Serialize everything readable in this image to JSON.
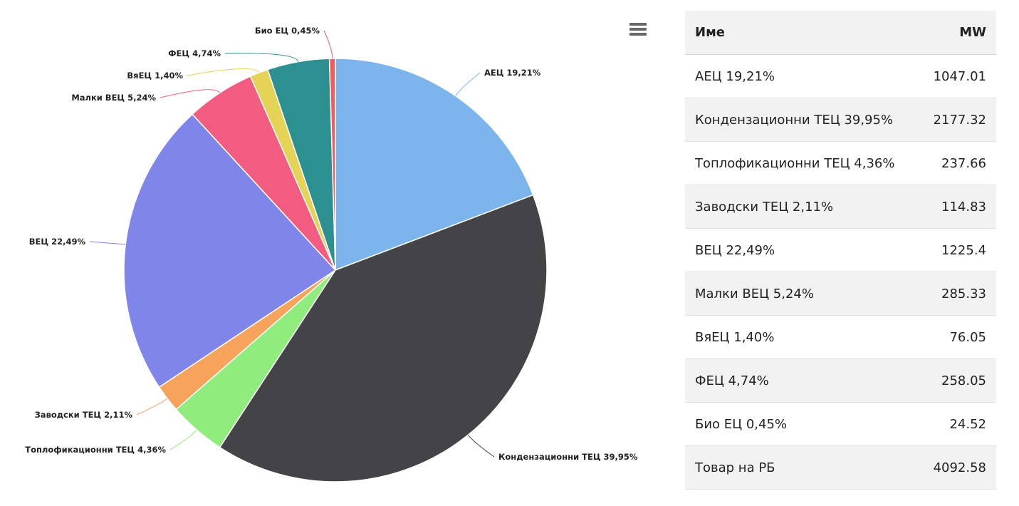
{
  "chart_data": {
    "type": "pie",
    "series": [
      {
        "label": "АЕЦ 19,21%",
        "value": 1047.01,
        "color": "#7cb5ec"
      },
      {
        "label": "Кондензационни ТЕЦ 39,95%",
        "value": 2177.32,
        "color": "#434348"
      },
      {
        "label": "Топлофикационни ТЕЦ 4,36%",
        "value": 237.66,
        "color": "#90ed7d"
      },
      {
        "label": "Заводски ТЕЦ 2,11%",
        "value": 114.83,
        "color": "#f7a35c"
      },
      {
        "label": "ВЕЦ 22,49%",
        "value": 1225.4,
        "color": "#8085e9"
      },
      {
        "label": "Малки ВЕЦ 5,24%",
        "value": 285.33,
        "color": "#f15c80"
      },
      {
        "label": "ВяЕЦ 1,40%",
        "value": 76.05,
        "color": "#e4d354"
      },
      {
        "label": "ФЕЦ 4,74%",
        "value": 258.05,
        "color": "#2b908f"
      },
      {
        "label": "Био ЕЦ 0,45%",
        "value": 24.52,
        "color": "#f45b5b"
      }
    ]
  },
  "table": {
    "headers": {
      "name": "Име",
      "value": "MW"
    },
    "rows": [
      {
        "name": "АЕЦ 19,21%",
        "value": "1047.01"
      },
      {
        "name": "Кондензационни ТЕЦ 39,95%",
        "value": "2177.32"
      },
      {
        "name": "Топлофикационни ТЕЦ 4,36%",
        "value": "237.66"
      },
      {
        "name": "Заводски ТЕЦ 2,11%",
        "value": "114.83"
      },
      {
        "name": "ВЕЦ 22,49%",
        "value": "1225.4"
      },
      {
        "name": "Малки ВЕЦ 5,24%",
        "value": "285.33"
      },
      {
        "name": "ВяЕЦ 1,40%",
        "value": "76.05"
      },
      {
        "name": "ФЕЦ 4,74%",
        "value": "258.05"
      },
      {
        "name": "Био ЕЦ 0,45%",
        "value": "24.52"
      },
      {
        "name": "Товар на РБ",
        "value": "4092.58"
      }
    ]
  }
}
